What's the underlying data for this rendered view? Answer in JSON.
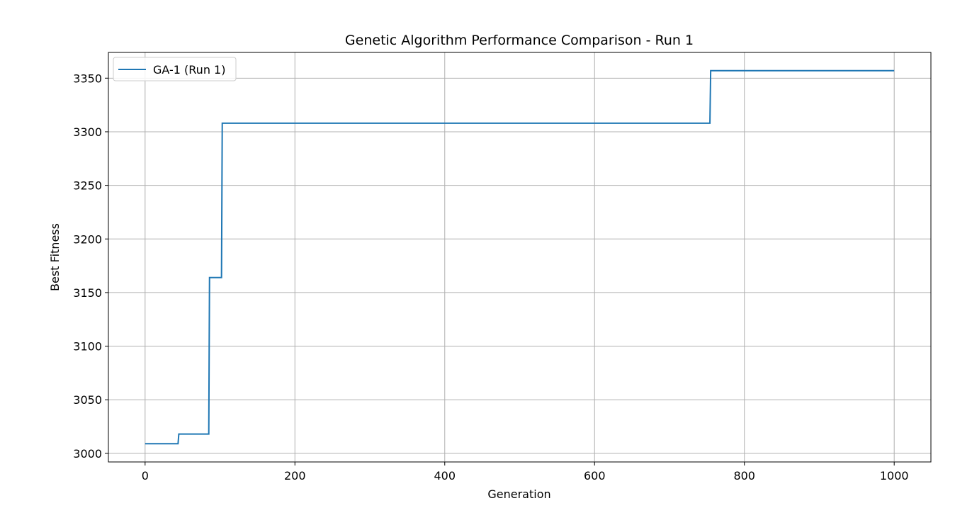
{
  "chart_data": {
    "type": "line",
    "title": "Genetic Algorithm Performance Comparison - Run 1",
    "xlabel": "Generation",
    "ylabel": "Best Fitness",
    "xlim": [
      -49,
      1049
    ],
    "ylim": [
      2992,
      3374
    ],
    "xticks": [
      0,
      200,
      400,
      600,
      800,
      1000
    ],
    "yticks": [
      3000,
      3050,
      3100,
      3150,
      3200,
      3250,
      3300,
      3350
    ],
    "grid": true,
    "legend_position": "top-left",
    "series": [
      {
        "name": "GA-1 (Run 1)",
        "color": "#1f77b4",
        "step": true,
        "x": [
          0,
          44,
          45,
          85,
          86,
          102,
          103,
          754,
          755,
          1000
        ],
        "y": [
          3009,
          3009,
          3018,
          3018,
          3164,
          3164,
          3308,
          3308,
          3357,
          3357
        ]
      }
    ]
  }
}
